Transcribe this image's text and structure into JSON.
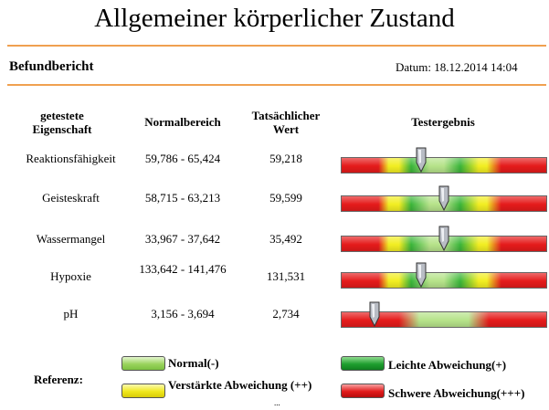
{
  "title": "Allgemeiner körperlicher Zustand",
  "report_label": "Befundbericht",
  "date_label": "Datum: 18.12.2014 14:04",
  "table": {
    "headers": {
      "property": "getestete Eigenschaft",
      "normal": "Normalbereich",
      "actual": "Tatsächlicher Wert",
      "result": "Testergebnis"
    },
    "rows": [
      {
        "property": "Reaktionsfähigkeit",
        "normal": "59,786 - 65,424",
        "actual": "59,218",
        "marker_position": 0.39
      },
      {
        "property": "Geisteskraft",
        "normal": "58,715 - 63,213",
        "actual": "59,599",
        "marker_position": 0.5
      },
      {
        "property": "Wassermangel",
        "normal": "33,967 - 37,642",
        "actual": "35,492",
        "marker_position": 0.5
      },
      {
        "property": "Hypoxie",
        "normal": "133,642 - 141,476",
        "actual": "131,531",
        "marker_position": 0.39
      },
      {
        "property": "pH",
        "normal": "3,156 - 3,694",
        "actual": "2,734",
        "marker_position": 0.16
      }
    ]
  },
  "legend": {
    "label": "Referenz:",
    "normal": "Normal(-)",
    "leicht": "Leichte Abweichung(+)",
    "verstaerkt": "Verstärkte Abweichung (++)",
    "schwer": "Schwere Abweichung(+++)",
    "trailing": "..."
  },
  "colors": {
    "rule": "#f0a050",
    "red": "#e51b1b",
    "yellow": "#f2ee22",
    "green": "#3ab53a",
    "light_green": "#b6e38a"
  }
}
